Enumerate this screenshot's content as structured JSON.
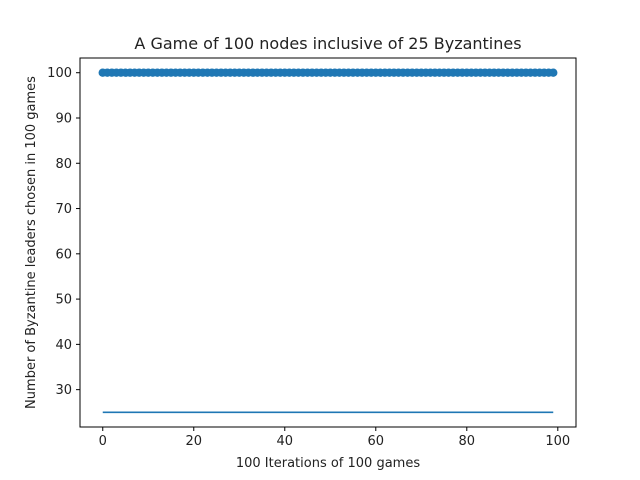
{
  "chart_data": {
    "type": "scatter",
    "title": "A Game of 100 nodes inclusive of 25 Byzantines",
    "xlabel": "100 Iterations of 100 games",
    "ylabel": "Number of Byzantine leaders chosen in 100 games",
    "xlim": [
      -5,
      104
    ],
    "ylim": [
      21.75,
      103.25
    ],
    "xticks": [
      "0",
      "20",
      "40",
      "60",
      "80",
      "100"
    ],
    "yticks": [
      "30",
      "40",
      "50",
      "60",
      "70",
      "80",
      "90",
      "100"
    ],
    "grid": false,
    "legend": "none",
    "series": [
      {
        "type": "scatter",
        "color": "#1f77b4",
        "x_start": 0,
        "x_end": 99,
        "x_step": 1,
        "y": 100
      },
      {
        "type": "line",
        "color": "#1f77b4",
        "x": [
          0,
          99
        ],
        "y": [
          25,
          25
        ]
      }
    ]
  }
}
